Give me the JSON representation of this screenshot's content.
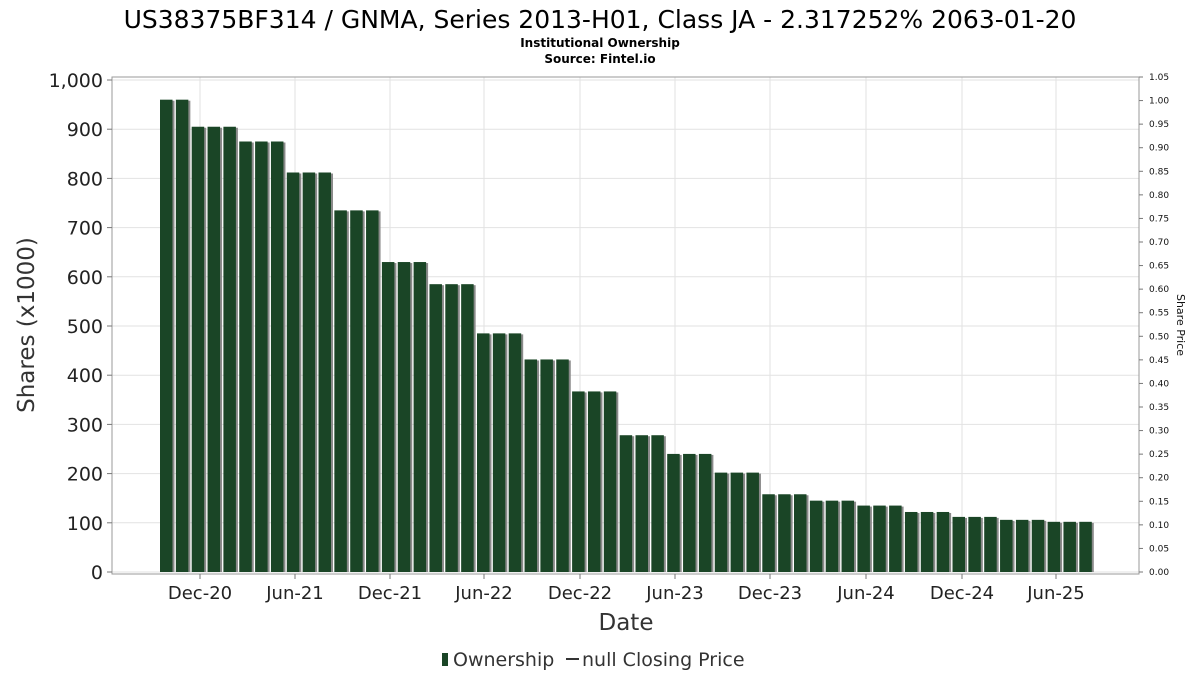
{
  "chart_data": {
    "type": "bar",
    "title": "US38375BF314 / GNMA, Series 2013-H01, Class JA - 2.317252% 2063-01-20",
    "subtitle_lines": [
      "Institutional Ownership",
      "Source: Fintel.io"
    ],
    "xlabel": "Date",
    "ylabel": "Shares (x1000)",
    "y2label": "Share Price",
    "ylim": [
      0,
      1000
    ],
    "y2lim": [
      0,
      1.05
    ],
    "yticks": [
      "0",
      "100",
      "200",
      "300",
      "400",
      "500",
      "600",
      "700",
      "800",
      "900",
      "1,000"
    ],
    "y2ticks": [
      "0.00",
      "0.05",
      "0.10",
      "0.15",
      "0.20",
      "0.25",
      "0.30",
      "0.35",
      "0.40",
      "0.45",
      "0.50",
      "0.55",
      "0.60",
      "0.65",
      "0.70",
      "0.75",
      "0.80",
      "0.85",
      "0.90",
      "0.95",
      "1.00",
      "1.05"
    ],
    "xticks": [
      "Dec-20",
      "Jun-21",
      "Dec-21",
      "Jun-22",
      "Dec-22",
      "Jun-23",
      "Dec-23",
      "Jun-24",
      "Dec-24",
      "Jun-25"
    ],
    "grid": true,
    "legend_position": "bottom",
    "series": [
      {
        "name": "Ownership",
        "color": "#1a4526",
        "values": [
          960,
          960,
          905,
          905,
          905,
          875,
          875,
          875,
          812,
          812,
          812,
          735,
          735,
          735,
          630,
          630,
          630,
          585,
          585,
          585,
          485,
          485,
          485,
          432,
          432,
          432,
          367,
          367,
          367,
          278,
          278,
          278,
          240,
          240,
          240,
          202,
          202,
          202,
          158,
          158,
          158,
          145,
          145,
          145,
          135,
          135,
          135,
          122,
          122,
          122,
          112,
          112,
          112,
          106,
          106,
          106,
          102,
          102,
          102
        ]
      },
      {
        "name": "null Closing Price",
        "color": "#333333",
        "values": []
      }
    ]
  }
}
